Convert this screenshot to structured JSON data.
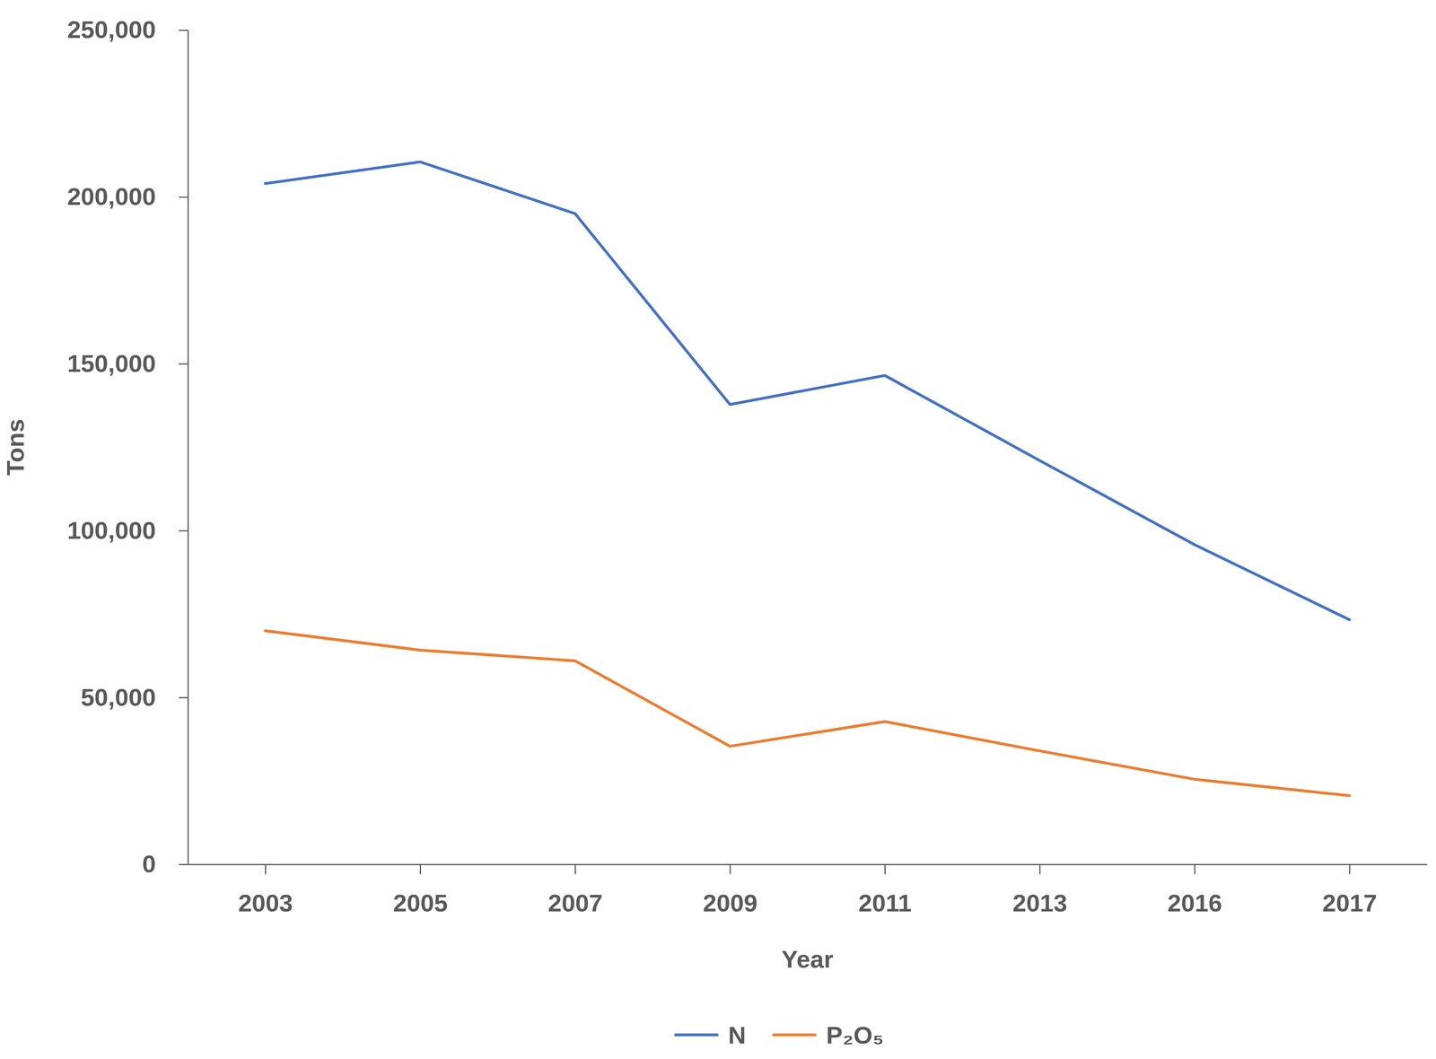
{
  "chart_data": {
    "type": "line",
    "x_label": "Year",
    "y_label": "Tons",
    "categories": [
      "2003",
      "2005",
      "2007",
      "2009",
      "2011",
      "2013",
      "2016",
      "2017"
    ],
    "series": [
      {
        "name": "N",
        "color": "#4472c4",
        "values": [
          204000,
          210500,
          195000,
          137800,
          146500,
          121000,
          95800,
          73300
        ]
      },
      {
        "name": "P₂O₅",
        "color": "#ed7d31",
        "values": [
          70000,
          64200,
          61000,
          35400,
          42800,
          34000,
          25500,
          20600
        ]
      }
    ],
    "ylim": [
      0,
      250000
    ],
    "yticks": [
      0,
      {
        "value": 50000,
        "label": "50,000"
      },
      {
        "value": 100000,
        "label": "100,000"
      },
      {
        "value": 150000,
        "label": "150,000"
      },
      {
        "value": 200000,
        "label": "200,000"
      },
      {
        "value": 250000,
        "label": "250,000"
      }
    ],
    "grid": false,
    "legend": "bottom"
  }
}
